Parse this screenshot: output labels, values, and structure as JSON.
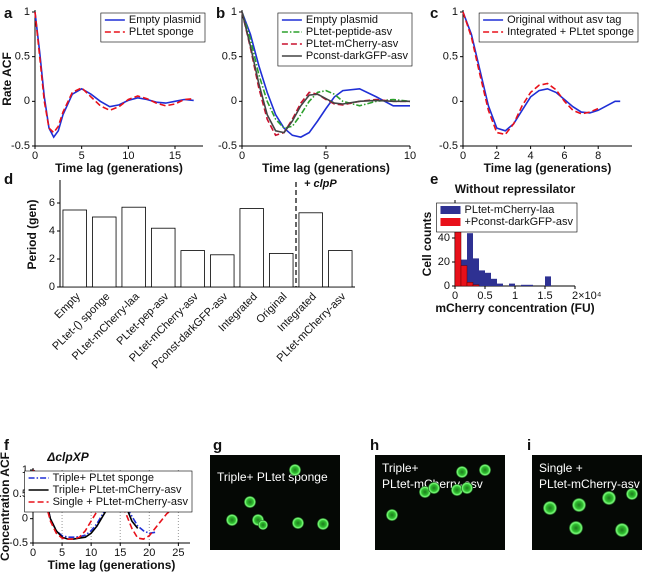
{
  "chart_data": [
    {
      "type": "line",
      "panel": "a",
      "xlabel": "Time lag (generations)",
      "ylabel": "Rate ACF",
      "x": [
        0,
        0.5,
        1,
        1.5,
        2,
        2.5,
        3,
        4,
        5,
        6,
        7,
        8,
        9,
        10,
        11,
        12,
        13,
        14,
        15,
        16,
        17
      ],
      "series": [
        {
          "name": "Empty plasmid",
          "color": "#1f2fd6",
          "style": "solid",
          "values": [
            1,
            0.55,
            0.05,
            -0.3,
            -0.4,
            -0.33,
            -0.15,
            0.08,
            0.14,
            0.08,
            0.0,
            -0.06,
            -0.04,
            0.01,
            0.04,
            0.02,
            -0.01,
            -0.02,
            0.0,
            0.02,
            0.01
          ]
        },
        {
          "name": "PLtet sponge",
          "color": "#e8101a",
          "style": "dashed",
          "values": [
            1,
            0.5,
            0.0,
            -0.3,
            -0.35,
            -0.28,
            -0.12,
            0.1,
            0.15,
            0.05,
            -0.05,
            -0.1,
            -0.06,
            0.02,
            0.06,
            0.03,
            -0.02,
            -0.05,
            -0.03,
            0.02,
            0.03
          ]
        }
      ],
      "xlim": [
        0,
        18
      ],
      "xticks": [
        0,
        5,
        10,
        15
      ],
      "ylim": [
        -0.5,
        1
      ],
      "yticks": [
        -0.5,
        0,
        0.5,
        1
      ],
      "legend": "upper right"
    },
    {
      "type": "line",
      "panel": "b",
      "xlabel": "Time lag (generations)",
      "x": [
        0,
        0.5,
        1,
        1.5,
        2,
        2.5,
        3,
        3.5,
        4,
        4.5,
        5,
        5.5,
        6,
        7,
        8,
        9,
        10
      ],
      "series": [
        {
          "name": "Empty plasmid",
          "color": "#1f2fd6",
          "style": "solid",
          "values": [
            1,
            0.75,
            0.4,
            0.1,
            -0.15,
            -0.3,
            -0.38,
            -0.4,
            -0.35,
            -0.22,
            -0.08,
            0.05,
            0.12,
            0.14,
            0.05,
            -0.05,
            -0.05
          ]
        },
        {
          "name": "PLtet-peptide-asv",
          "color": "#2ca02c",
          "style": "dashdot",
          "values": [
            1,
            0.7,
            0.3,
            0,
            -0.2,
            -0.3,
            -0.28,
            -0.15,
            0,
            0.1,
            0.12,
            0.08,
            0.0,
            -0.05,
            0.0,
            0.02,
            0
          ]
        },
        {
          "name": "PLtet-mCherry-asv",
          "color": "#c8102e",
          "style": "dashed",
          "values": [
            1,
            0.6,
            0.15,
            -0.2,
            -0.38,
            -0.35,
            -0.2,
            -0.02,
            0.1,
            0.08,
            0.02,
            -0.03,
            -0.04,
            0,
            0.02,
            0,
            0
          ]
        },
        {
          "name": "Pconst-darkGFP-asv",
          "color": "#444444",
          "style": "solid",
          "values": [
            1,
            0.62,
            0.2,
            -0.15,
            -0.33,
            -0.35,
            -0.22,
            -0.05,
            0.07,
            0.08,
            0.03,
            -0.02,
            -0.03,
            0,
            0.01,
            0,
            0
          ]
        }
      ],
      "xlim": [
        0,
        10
      ],
      "xticks": [
        0,
        5,
        10
      ],
      "ylim": [
        -0.5,
        1
      ],
      "yticks": [
        -0.5,
        0,
        0.5,
        1
      ],
      "legend": "upper right"
    },
    {
      "type": "line",
      "panel": "c",
      "xlabel": "Time lag (generations)",
      "x": [
        0,
        0.5,
        1,
        1.5,
        2,
        2.5,
        3,
        3.5,
        4,
        4.5,
        5,
        5.5,
        6,
        6.5,
        7,
        7.5,
        8,
        8.5,
        9,
        9.3
      ],
      "series": [
        {
          "name": "Original without asv tag",
          "color": "#1f2fd6",
          "style": "solid",
          "values": [
            1,
            0.75,
            0.35,
            -0.05,
            -0.3,
            -0.33,
            -0.25,
            -0.1,
            0.05,
            0.12,
            0.14,
            0.1,
            0.02,
            -0.06,
            -0.12,
            -0.13,
            -0.1,
            -0.05,
            0.0,
            0.0
          ]
        },
        {
          "name": "Integrated + PLtet sponge",
          "color": "#e8101a",
          "style": "dashed",
          "values": [
            1,
            0.72,
            0.3,
            -0.1,
            -0.35,
            -0.37,
            -0.25,
            -0.05,
            0.1,
            0.18,
            0.2,
            0.13,
            0.0,
            -0.1,
            -0.14,
            -0.12,
            -0.08,
            null,
            null,
            null
          ]
        }
      ],
      "xlim": [
        0,
        10
      ],
      "xticks": [
        0,
        2,
        4,
        6,
        8
      ],
      "ylim": [
        -0.5,
        1
      ],
      "yticks": [
        -0.5,
        0,
        0.5,
        1
      ],
      "legend": "upper right"
    },
    {
      "type": "bar",
      "panel": "d",
      "ylabel": "Period (gen)",
      "annotation": "+ clpP",
      "categories": [
        "Empty",
        "PLtet-() sponge",
        "PLtet-mCherry-laa",
        "PLtet-pep-asv",
        "PLtet-mCherry-asv",
        "Pconst-darkGFP-asv",
        "Integrated",
        "Original",
        "Integrated",
        "PLtet-mCherry-asv"
      ],
      "values": [
        5.5,
        5.0,
        5.7,
        4.2,
        2.6,
        2.3,
        5.6,
        2.4,
        5.3,
        2.6
      ],
      "color": "#ffffff",
      "ylim": [
        0,
        7.5
      ],
      "yticks": [
        0,
        2,
        4,
        6
      ]
    },
    {
      "type": "histogram",
      "panel": "e",
      "title": "Without repressilator",
      "xlabel": "mCherry concentration (FU)",
      "ylabel": "Cell counts",
      "bins": [
        0,
        0.1,
        0.2,
        0.3,
        0.4,
        0.5,
        0.6,
        0.7,
        0.8,
        0.9,
        1.0,
        1.1,
        1.2,
        1.3,
        1.4,
        1.5,
        1.6
      ],
      "series": [
        {
          "name": "PLtet-mCherry-laa",
          "color": "#2e3192",
          "values": [
            5,
            22,
            44,
            23,
            13,
            11,
            6,
            2,
            0,
            2,
            0,
            1,
            1,
            0,
            0,
            8
          ]
        },
        {
          "name": "+Pconst-darkGFP-asv",
          "color": "#e8101a",
          "values": [
            64,
            17,
            3,
            1,
            0,
            0,
            0,
            0,
            0,
            0,
            0,
            0,
            0,
            0,
            0,
            0
          ]
        }
      ],
      "xlim": [
        0,
        2
      ],
      "xticks": [
        0,
        0.5,
        1,
        1.5,
        {
          "value": 2,
          "label": "2×10⁴"
        }
      ],
      "ylim": [
        0,
        70
      ],
      "yticks": [
        0,
        20,
        40,
        60
      ],
      "legend": "upper right"
    },
    {
      "type": "line",
      "panel": "f",
      "title": "ΔclpXP",
      "xlabel": "Time lag (generations)",
      "ylabel": "Concentration ACF",
      "x": [
        0,
        1,
        2,
        3,
        4,
        5,
        6,
        7,
        8,
        9,
        10,
        11,
        12,
        13,
        14,
        15,
        16,
        17,
        18,
        19,
        20,
        21,
        22,
        23,
        24,
        25,
        26,
        27
      ],
      "series": [
        {
          "name": "Triple+ PLtet sponge",
          "color": "#1f2fd6",
          "style": "dashdot",
          "values": [
            1,
            0.9,
            0.5,
            0.0,
            -0.25,
            -0.35,
            -0.38,
            -0.38,
            -0.37,
            -0.34,
            -0.25,
            -0.1,
            0.1,
            0.3,
            0.4,
            0.38,
            0.25,
            0.05,
            -0.15,
            -0.25,
            -0.3,
            -0.28,
            null,
            null,
            null,
            null,
            null,
            null
          ]
        },
        {
          "name": "Triple+ PLtet-mCherry-asv",
          "color": "#000000",
          "style": "solid",
          "values": [
            1,
            0.9,
            0.5,
            0.0,
            -0.25,
            -0.38,
            -0.42,
            -0.42,
            -0.4,
            -0.38,
            -0.3,
            -0.15,
            0.05,
            0.25,
            0.4,
            0.42,
            0.25,
            -0.05,
            -0.2,
            null,
            null,
            null,
            null,
            null,
            null,
            null,
            null,
            null
          ]
        },
        {
          "name": "Single + PLtet-mCherry-asv",
          "color": "#e8101a",
          "style": "dashed",
          "values": [
            1,
            0.85,
            0.4,
            -0.05,
            -0.3,
            -0.4,
            -0.42,
            -0.42,
            -0.38,
            -0.25,
            -0.05,
            0.15,
            0.32,
            0.42,
            0.45,
            0.35,
            0.1,
            -0.2,
            -0.4,
            -0.42,
            -0.35,
            -0.2,
            -0.05,
            0.1,
            0.2,
            0.22,
            0.2,
            0.15
          ]
        }
      ],
      "xlim": [
        0,
        27
      ],
      "xticks": [
        0,
        5,
        10,
        15,
        20,
        25
      ],
      "ylim": [
        -0.5,
        1
      ],
      "yticks": [
        -0.5,
        0,
        0.5,
        1
      ],
      "xgrid": true,
      "legend": "upper right"
    }
  ],
  "images": [
    {
      "panel": "g",
      "label": [
        "Triple+ PLtet sponge"
      ]
    },
    {
      "panel": "h",
      "label": [
        "Triple+",
        "PLtet-mCherry-asv"
      ]
    },
    {
      "panel": "i",
      "label": [
        "Single +",
        "PLtet-mCherry-asv"
      ]
    }
  ]
}
